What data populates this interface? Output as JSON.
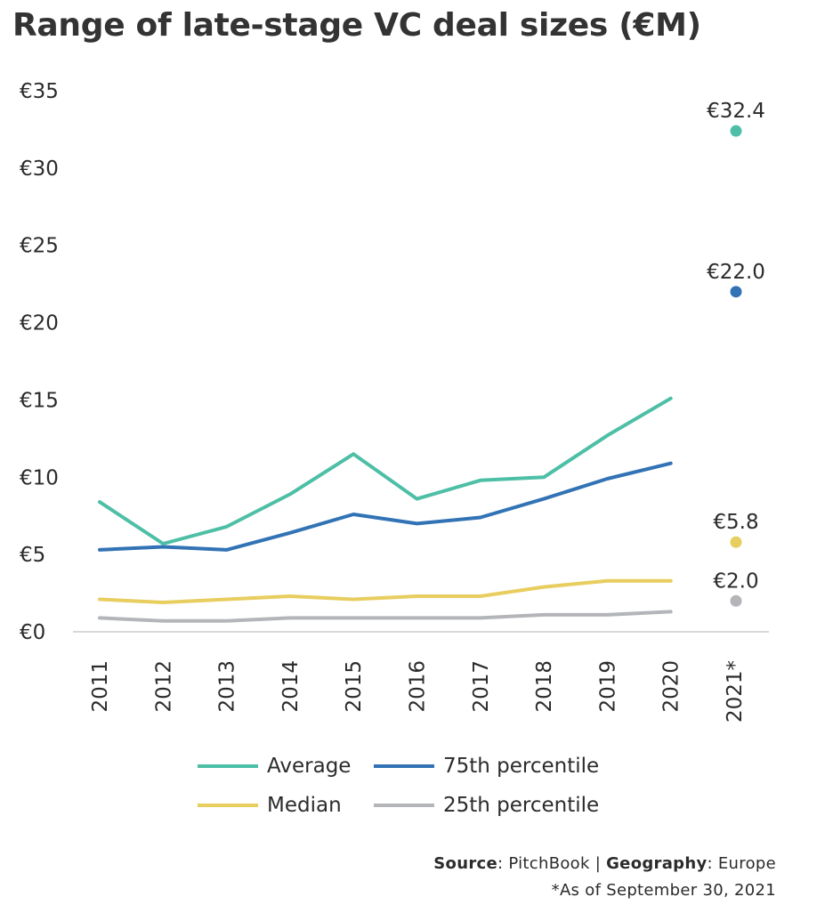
{
  "title": "Range of late-stage VC deal sizes (€M)",
  "colors": {
    "average": "#4dbfa6",
    "p75": "#3273b5",
    "median": "#e8cd5f",
    "p25": "#b3b5b8",
    "axis": "#cccccc"
  },
  "chart_data": {
    "type": "line",
    "title": "Range of late-stage VC deal sizes (€M)",
    "xlabel": "",
    "ylabel": "",
    "ylim": [
      0,
      35
    ],
    "grid": false,
    "categories": [
      "2011",
      "2012",
      "2013",
      "2014",
      "2015",
      "2016",
      "2017",
      "2018",
      "2019",
      "2020",
      "2021*"
    ],
    "y_ticks": [
      0,
      5,
      10,
      15,
      20,
      25,
      30,
      35
    ],
    "y_tick_labels": [
      "€0",
      "€5",
      "€10",
      "€15",
      "€20",
      "€25",
      "€30",
      "€35"
    ],
    "series": [
      {
        "name": "Average",
        "key": "average",
        "values": [
          8.4,
          5.7,
          6.8,
          8.9,
          11.5,
          8.6,
          9.8,
          10.0,
          12.7,
          15.1,
          32.4
        ]
      },
      {
        "name": "75th percentile",
        "key": "p75",
        "values": [
          5.3,
          5.5,
          5.3,
          6.4,
          7.6,
          7.0,
          7.4,
          8.6,
          9.9,
          10.9,
          22.0
        ]
      },
      {
        "name": "Median",
        "key": "median",
        "values": [
          2.1,
          1.9,
          2.1,
          2.3,
          2.1,
          2.3,
          2.3,
          2.9,
          3.3,
          3.3,
          5.8
        ]
      },
      {
        "name": "25th percentile",
        "key": "p25",
        "values": [
          0.9,
          0.7,
          0.7,
          0.9,
          0.9,
          0.9,
          0.9,
          1.1,
          1.1,
          1.3,
          2.0
        ]
      }
    ],
    "annotations": [
      {
        "series": "average",
        "text": "€32.4"
      },
      {
        "series": "p75",
        "text": "€22.0"
      },
      {
        "series": "median",
        "text": "€5.8"
      },
      {
        "series": "p25",
        "text": "€2.0"
      }
    ]
  },
  "legend": {
    "average": "Average",
    "p75": "75th percentile",
    "median": "Median",
    "p25": "25th percentile"
  },
  "source": {
    "source_label": "Source",
    "source_value": ": PitchBook | ",
    "geo_label": "Geography",
    "geo_value": ": Europe",
    "note": "*As of September 30, 2021"
  }
}
